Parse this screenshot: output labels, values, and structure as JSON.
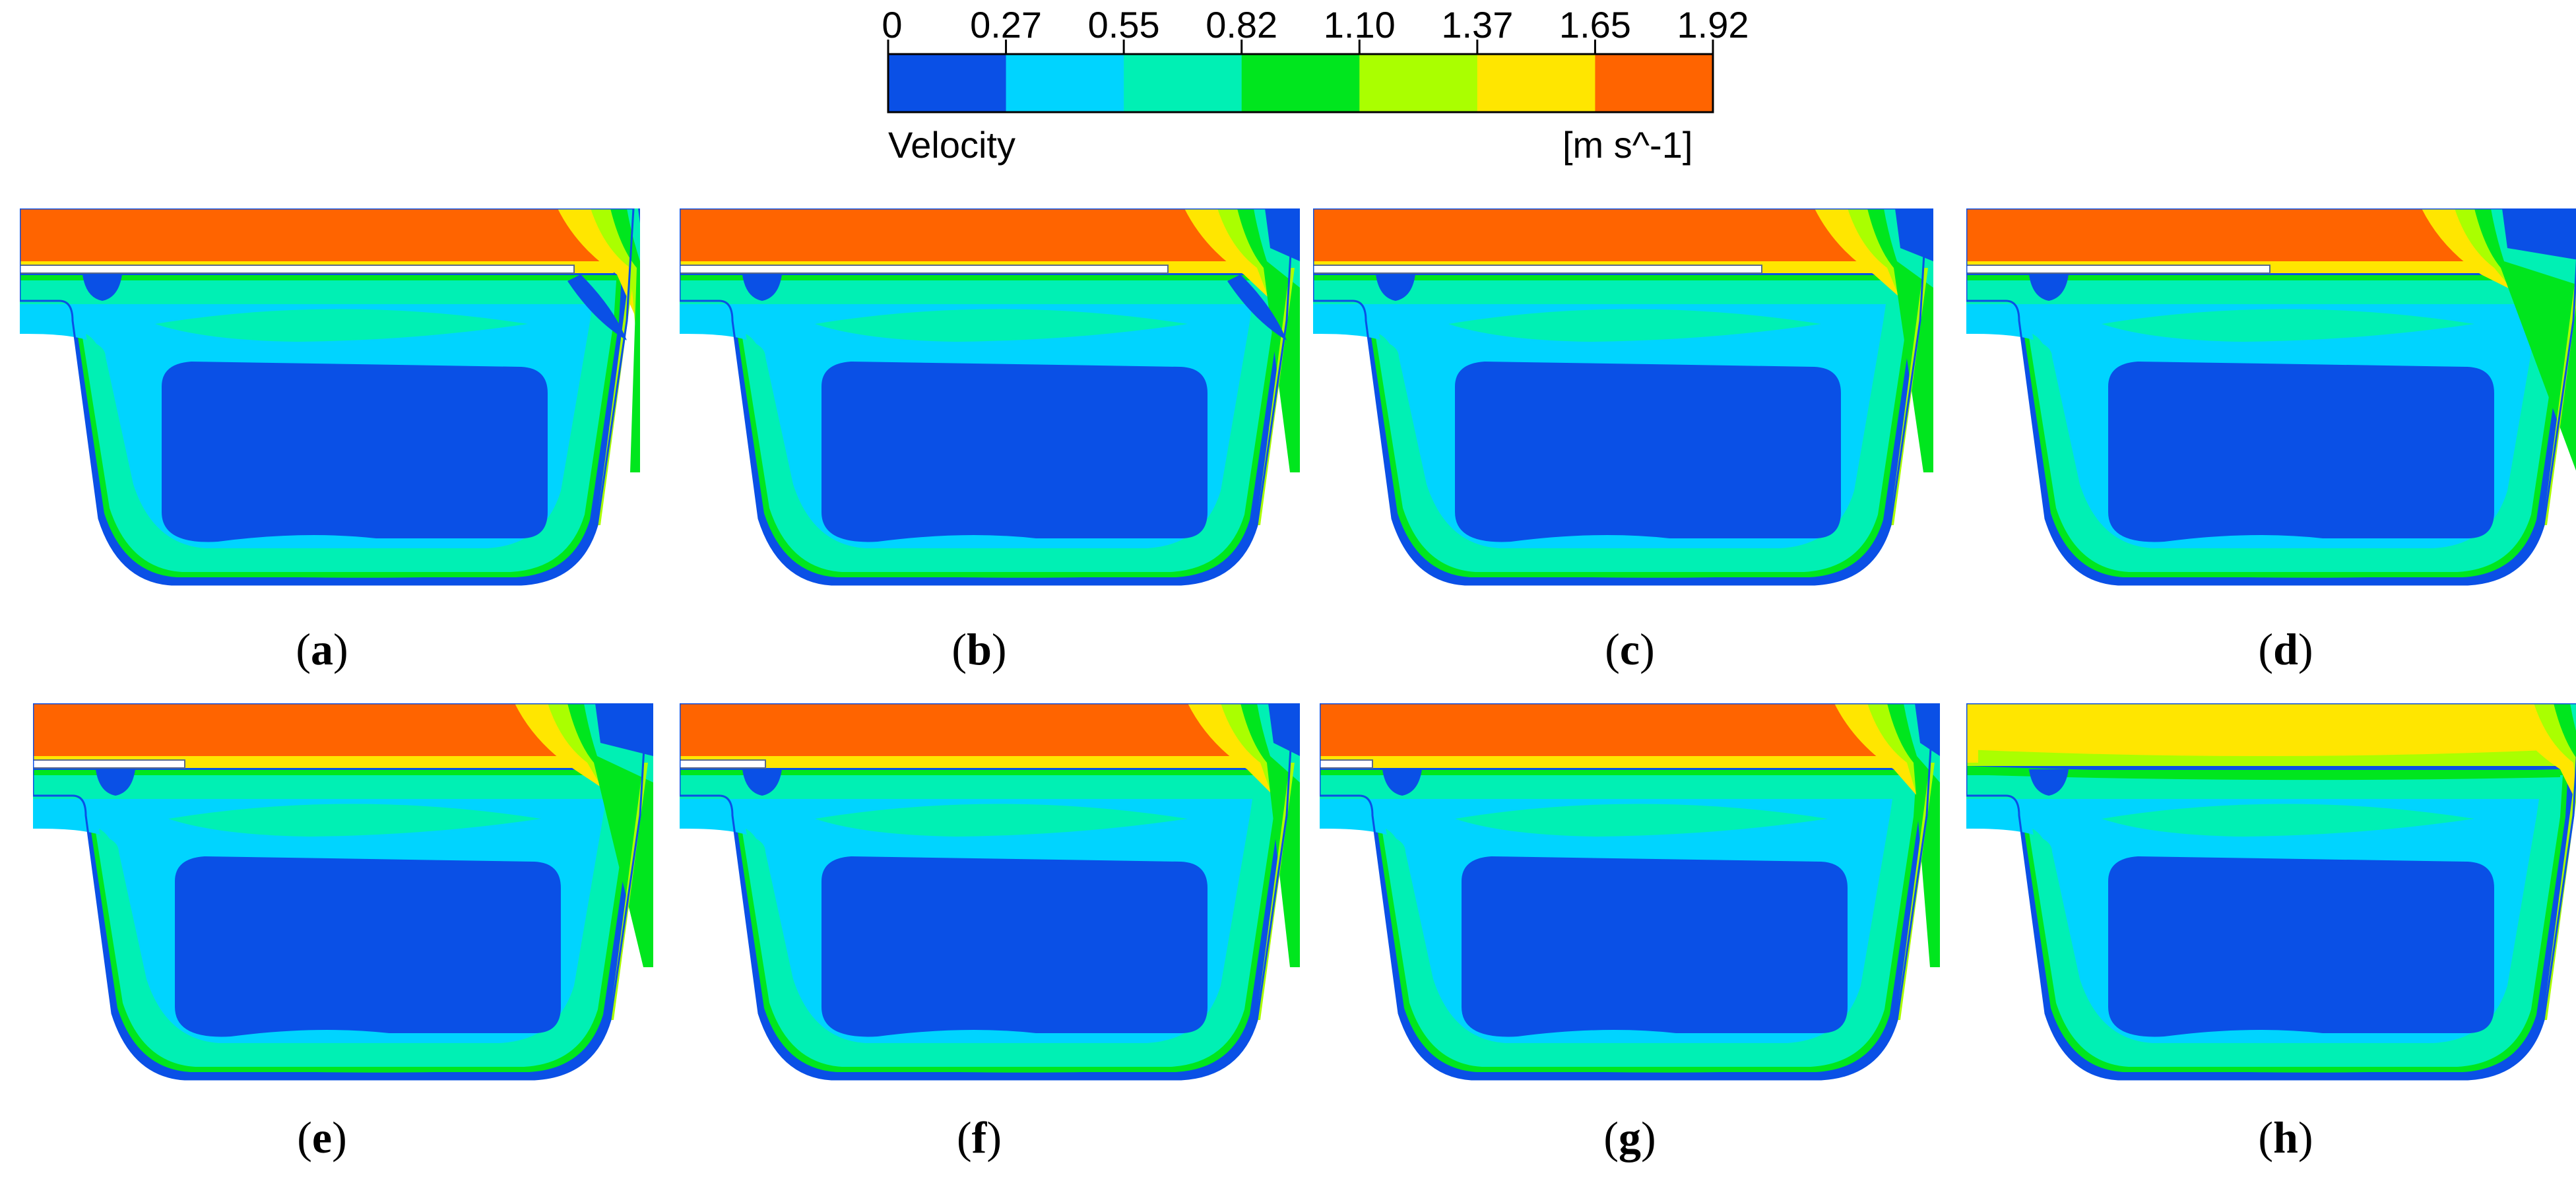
{
  "colorbar": {
    "title": "Velocity",
    "unit": "[m s^-1]",
    "tick_labels": [
      "0",
      "0.27",
      "0.55",
      "0.82",
      "1.10",
      "1.37",
      "1.65",
      "1.92"
    ],
    "band_colors": [
      "#0a50e6",
      "#00d4ff",
      "#00f0b4",
      "#00e61e",
      "#aaff00",
      "#ffe600",
      "#ff6400"
    ]
  },
  "panels": [
    {
      "label": "a",
      "variant": "a"
    },
    {
      "label": "b",
      "variant": "b"
    },
    {
      "label": "c",
      "variant": "c"
    },
    {
      "label": "d",
      "variant": "d"
    },
    {
      "label": "e",
      "variant": "e"
    },
    {
      "label": "f",
      "variant": "f"
    },
    {
      "label": "g",
      "variant": "g"
    },
    {
      "label": "h",
      "variant": "h"
    }
  ]
}
